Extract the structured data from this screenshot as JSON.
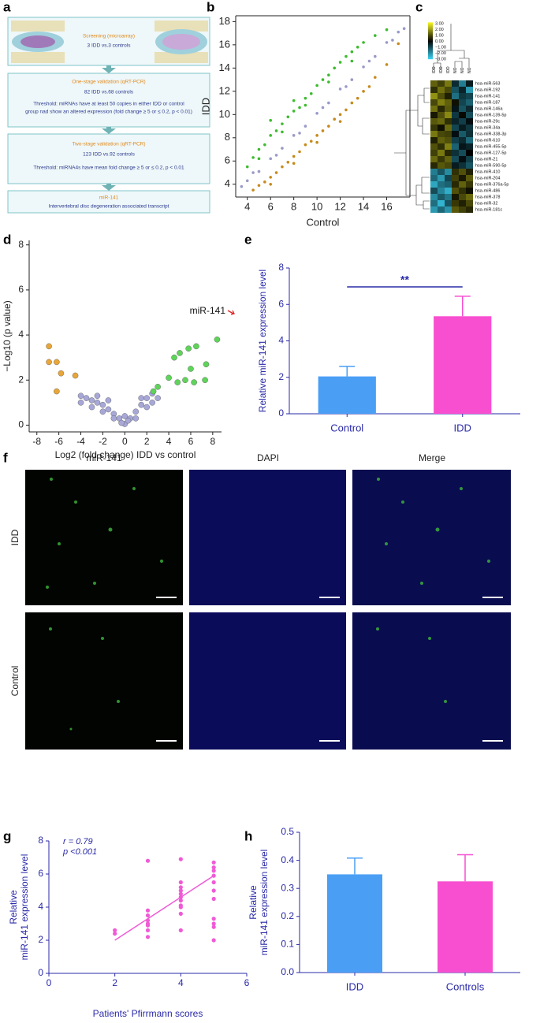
{
  "panel_labels": [
    "a",
    "b",
    "c",
    "d",
    "e",
    "f",
    "g",
    "h"
  ],
  "flowchart": {
    "steps": [
      {
        "title": "Screening (microarray)",
        "lines": [
          "3 IDD vs.3 controls"
        ]
      },
      {
        "title": "One-stage validation (qRT-PCR)",
        "lines": [
          "82 IDD vs.68 controls",
          "Threshold: miRNAs have at least 50 copies in either IDD or control",
          "group nad show an altered expression (fold change ≥ 5 or ≤ 0.2, p < 0.01)"
        ]
      },
      {
        "title": "Two-stage validation (qRT-PCR)",
        "lines": [
          "123 IDD vs.92 controls",
          "Threshold: miRNA4s have mean fold change ≥ 5 or ≤ 0.2, p < 0.01"
        ]
      },
      {
        "title": "miR-141",
        "lines": [
          "Intervertebral disc degeneration associated transcript"
        ]
      }
    ]
  },
  "images": {
    "columns": [
      "miR-141",
      "DAPI",
      "Merge"
    ],
    "rows": [
      "IDD",
      "Control"
    ]
  },
  "chart_data": [
    {
      "type": "scatter",
      "xlabel": "Control",
      "ylabel": "IDD",
      "xlim": [
        3,
        18
      ],
      "ylim": [
        2.9,
        18.5
      ],
      "xticks": [
        4,
        6,
        8,
        10,
        12,
        14,
        16
      ],
      "yticks": [
        4,
        6,
        8,
        10,
        12,
        14,
        16,
        18
      ],
      "series": [
        {
          "color": "#3dbb2f",
          "x": [
            4,
            4.5,
            5,
            5.5,
            6,
            6.5,
            7,
            7.5,
            8,
            8.5,
            9,
            9.5,
            10,
            10.5,
            11,
            11.5,
            12,
            12.5,
            13,
            13.5,
            14,
            15,
            16,
            5,
            7,
            9,
            11,
            13,
            8,
            6
          ],
          "values": [
            5.5,
            6.3,
            7,
            7.4,
            8.2,
            8.6,
            9.2,
            9.8,
            10.3,
            10.6,
            11.4,
            11.8,
            12.5,
            13,
            13.4,
            14,
            14.5,
            15,
            15.4,
            15.8,
            16.2,
            16.8,
            17.3,
            6.2,
            8.5,
            10.8,
            12.8,
            14.6,
            11.2,
            9.5
          ]
        },
        {
          "color": "#9a9ac8",
          "x": [
            3.5,
            4,
            5,
            6,
            7,
            8,
            9,
            10,
            11,
            12,
            13,
            14,
            15,
            16,
            17,
            17.5,
            4.5,
            6.5,
            8.5,
            10.5,
            12.5,
            14.5,
            16.5
          ],
          "values": [
            3.8,
            4.3,
            5.1,
            6.2,
            7.1,
            8.2,
            9,
            10.1,
            11,
            12.2,
            13,
            14.1,
            15,
            16.2,
            17.1,
            17.4,
            5,
            6.5,
            8.4,
            10.6,
            12.4,
            14.6,
            16.4
          ]
        },
        {
          "color": "#c68a1c",
          "x": [
            4.5,
            5,
            5.5,
            6,
            6.5,
            7,
            7.5,
            8,
            8.5,
            9,
            9.5,
            10,
            10.5,
            11,
            11.5,
            12,
            12.5,
            13,
            13.5,
            14,
            14.5,
            15,
            16,
            17,
            6,
            8,
            10,
            12
          ],
          "values": [
            3.5,
            3.9,
            4.2,
            4.6,
            5,
            5.5,
            5.9,
            6.4,
            6.8,
            7.4,
            7.7,
            8.2,
            8.6,
            9,
            9.6,
            10,
            10.4,
            11,
            11.4,
            12,
            12.4,
            13.2,
            14.3,
            16.1,
            4,
            5.8,
            7.6,
            9.4
          ]
        }
      ]
    },
    {
      "type": "heatmap",
      "columns": [
        "IDD",
        "IDD",
        "IDD",
        "NC",
        "NC",
        "NC"
      ],
      "rows": [
        "hsa-miR-563",
        "hsa-miR-192",
        "hsa-miR-141",
        "hsa-miR-187",
        "hsa-miR-146a",
        "hsa-miR-139-5p",
        "hsa-miR-29c",
        "hsa-miR-34a",
        "hsa-miR-338-3p",
        "hsa-miR-610",
        "hsa-miR-455-5p",
        "hsa-miR-127-5p",
        "hsa-miR-21",
        "hsa-miR-590-5p",
        "hsa-miR-410",
        "hsa-miR-204",
        "hsa-miR-376a-5p",
        "hsa-miR-486",
        "hsa-miR-378",
        "hsa-miR-32",
        "hsa-miR-181c"
      ],
      "matrix": [
        [
          1.2,
          0.8,
          1.5,
          -0.6,
          -1.8,
          -0.4
        ],
        [
          0.6,
          1.4,
          0.9,
          -1.2,
          -0.5,
          -2.2
        ],
        [
          1.8,
          1,
          0.4,
          -1.6,
          -0.8,
          -1
        ],
        [
          0.9,
          1.6,
          1.2,
          0.2,
          -1,
          -1.4
        ],
        [
          1.4,
          0.5,
          1.1,
          -0.3,
          -1.2,
          -0.6
        ],
        [
          0.3,
          1,
          1.7,
          -0.8,
          0.1,
          -1.1
        ],
        [
          1.1,
          1.3,
          0.6,
          -0.5,
          -0.9,
          -0.2
        ],
        [
          0.7,
          0.2,
          1.3,
          -1,
          -0.4,
          -0.8
        ],
        [
          1.5,
          0.9,
          0.8,
          -0.2,
          -1.3,
          -0.7
        ],
        [
          0.4,
          1.2,
          1,
          -0.9,
          -0.6,
          -1.5
        ],
        [
          1,
          0.6,
          1.6,
          -1.4,
          -0.3,
          -0.5
        ],
        [
          0.8,
          1.5,
          0.5,
          -0.7,
          -1.1,
          0
        ],
        [
          1.3,
          0.7,
          1.2,
          -1.1,
          -0.2,
          -0.9
        ],
        [
          0.5,
          1.1,
          0.9,
          -0.4,
          -0.7,
          -1.2
        ],
        [
          -1.8,
          -1.2,
          -2,
          0.6,
          1,
          0.4
        ],
        [
          -1.5,
          -2.2,
          -1,
          0.8,
          0.3,
          1.1
        ],
        [
          -2.4,
          -1.6,
          -1.4,
          0.5,
          1.2,
          0.7
        ],
        [
          -1.1,
          -1.9,
          -2.5,
          1,
          0.6,
          0.2
        ],
        [
          -2,
          -1.3,
          -1.7,
          0.3,
          0.9,
          1.3
        ],
        [
          -1.6,
          -2.6,
          -1.2,
          0.7,
          0.4,
          0.9
        ],
        [
          -2.2,
          -1.5,
          -2.1,
          1.1,
          0.8,
          0.5
        ]
      ],
      "clim": [
        -3,
        3
      ],
      "colors": [
        "#3ad0f0",
        "#000000",
        "#f0f020"
      ],
      "colorbar_ticks": [
        {
          "value": 3,
          "label": "3.00"
        },
        {
          "value": 2,
          "label": "2.00"
        },
        {
          "value": 1,
          "label": "1.00"
        },
        {
          "value": 0,
          "label": "0.00"
        },
        {
          "value": -1,
          "label": "−1.00"
        },
        {
          "value": -2,
          "label": "−2.00"
        },
        {
          "value": -3,
          "label": "−3.00"
        }
      ]
    },
    {
      "type": "scatter",
      "xlabel": "Log2 (fold change) IDD vs control",
      "ylabel": "−Log10 (p value)",
      "annotation": "miR-141",
      "xlim": [
        -8.7,
        8.8
      ],
      "ylim": [
        -0.3,
        8.2
      ],
      "xticks": [
        -8,
        -6,
        -4,
        -2,
        0,
        2,
        4,
        6,
        8
      ],
      "yticks": [
        0,
        2,
        4,
        6,
        8
      ],
      "series": [
        {
          "color": "#a7a7d8",
          "x": [
            -4,
            -3.5,
            -3,
            -2.5,
            -2,
            -1.5,
            -1,
            -0.5,
            0,
            0.5,
            1,
            1.5,
            2,
            2.5,
            -3,
            -2,
            -1,
            1,
            2,
            -4,
            -2.5,
            3,
            0,
            -0.3,
            0.3,
            -1.5,
            1.5,
            2.5
          ],
          "values": [
            1.3,
            1.2,
            1.1,
            1,
            0.9,
            0.7,
            0.5,
            0.3,
            0.05,
            0.3,
            0.6,
            0.9,
            1.2,
            1.4,
            0.8,
            0.6,
            0.3,
            0.3,
            0.8,
            1,
            1.3,
            1.2,
            0.4,
            0.1,
            0.2,
            1.1,
            1.2,
            1
          ]
        },
        {
          "color": "#e8a63a",
          "x": [
            -6.9,
            -6.9,
            -6.2,
            -5.8,
            -4.5,
            -6.2
          ],
          "values": [
            3.5,
            2.8,
            2.8,
            2.3,
            2.2,
            1.5
          ]
        },
        {
          "color": "#5fd35a",
          "x": [
            8.4,
            6.5,
            5.8,
            4.5,
            5,
            6,
            7.4,
            4,
            4.8,
            5.5,
            6.3,
            7.3,
            3,
            2.6
          ],
          "values": [
            3.8,
            3.5,
            3.4,
            3,
            3.2,
            2.5,
            2.7,
            2.1,
            1.9,
            2,
            1.9,
            2,
            1.7,
            1.5
          ]
        }
      ]
    },
    {
      "type": "bar",
      "ylabel": "Relative miR-141 expression level",
      "significance_label": "**",
      "categories": [
        "Control",
        "IDD"
      ],
      "values": [
        2.05,
        5.35
      ],
      "errors": [
        0.55,
        1.1
      ],
      "colors": [
        "#4a9ff5",
        "#f74fd0"
      ],
      "ylim": [
        0,
        8
      ],
      "yticks": [
        0,
        2,
        4,
        6,
        8
      ]
    },
    {
      "type": "scatter",
      "xlabel": "Patients' Pfirrmann scores",
      "ylabel": [
        "Relative",
        "miR-141 expression level"
      ],
      "annotations": [
        "r = 0.79",
        "p <0.001"
      ],
      "xlim": [
        0,
        6
      ],
      "ylim": [
        0,
        8
      ],
      "xticks": [
        0,
        2,
        4,
        6
      ],
      "yticks": [
        0,
        2,
        4,
        6,
        8
      ],
      "series": [
        {
          "color": "#f05ad6",
          "x": [
            2,
            2,
            3,
            3,
            3,
            3,
            3,
            3,
            3,
            3,
            4,
            4,
            4,
            4,
            4,
            4,
            4,
            4,
            4,
            4,
            4,
            5,
            5,
            5,
            5,
            5,
            5,
            5,
            5,
            5,
            5,
            5
          ],
          "values": [
            2.4,
            2.6,
            6.8,
            2.2,
            2.6,
            3,
            3.2,
            3.5,
            3.8,
            2.9,
            6.9,
            2.6,
            4,
            4.4,
            4.6,
            4.8,
            5,
            5.2,
            5.5,
            3.6,
            4.1,
            2,
            2.8,
            3.3,
            5.9,
            6.2,
            6.4,
            6.7,
            5.5,
            5,
            4.5,
            3
          ]
        }
      ],
      "fit_line": {
        "color": "#f05ad6",
        "x": [
          2,
          5
        ],
        "values": [
          2,
          5.9
        ]
      }
    },
    {
      "type": "bar",
      "ylabel": [
        "Relative",
        "miR-141 expression level"
      ],
      "categories": [
        "IDD",
        "Controls"
      ],
      "values": [
        0.35,
        0.325
      ],
      "errors": [
        0.058,
        0.095
      ],
      "colors": [
        "#4a9ff5",
        "#f74fd0"
      ],
      "ylim": [
        0,
        0.5
      ],
      "yticks": [
        {
          "value": 0,
          "label": "0.0"
        },
        0.1,
        0.2,
        0.3,
        0.4,
        0.5
      ]
    }
  ]
}
